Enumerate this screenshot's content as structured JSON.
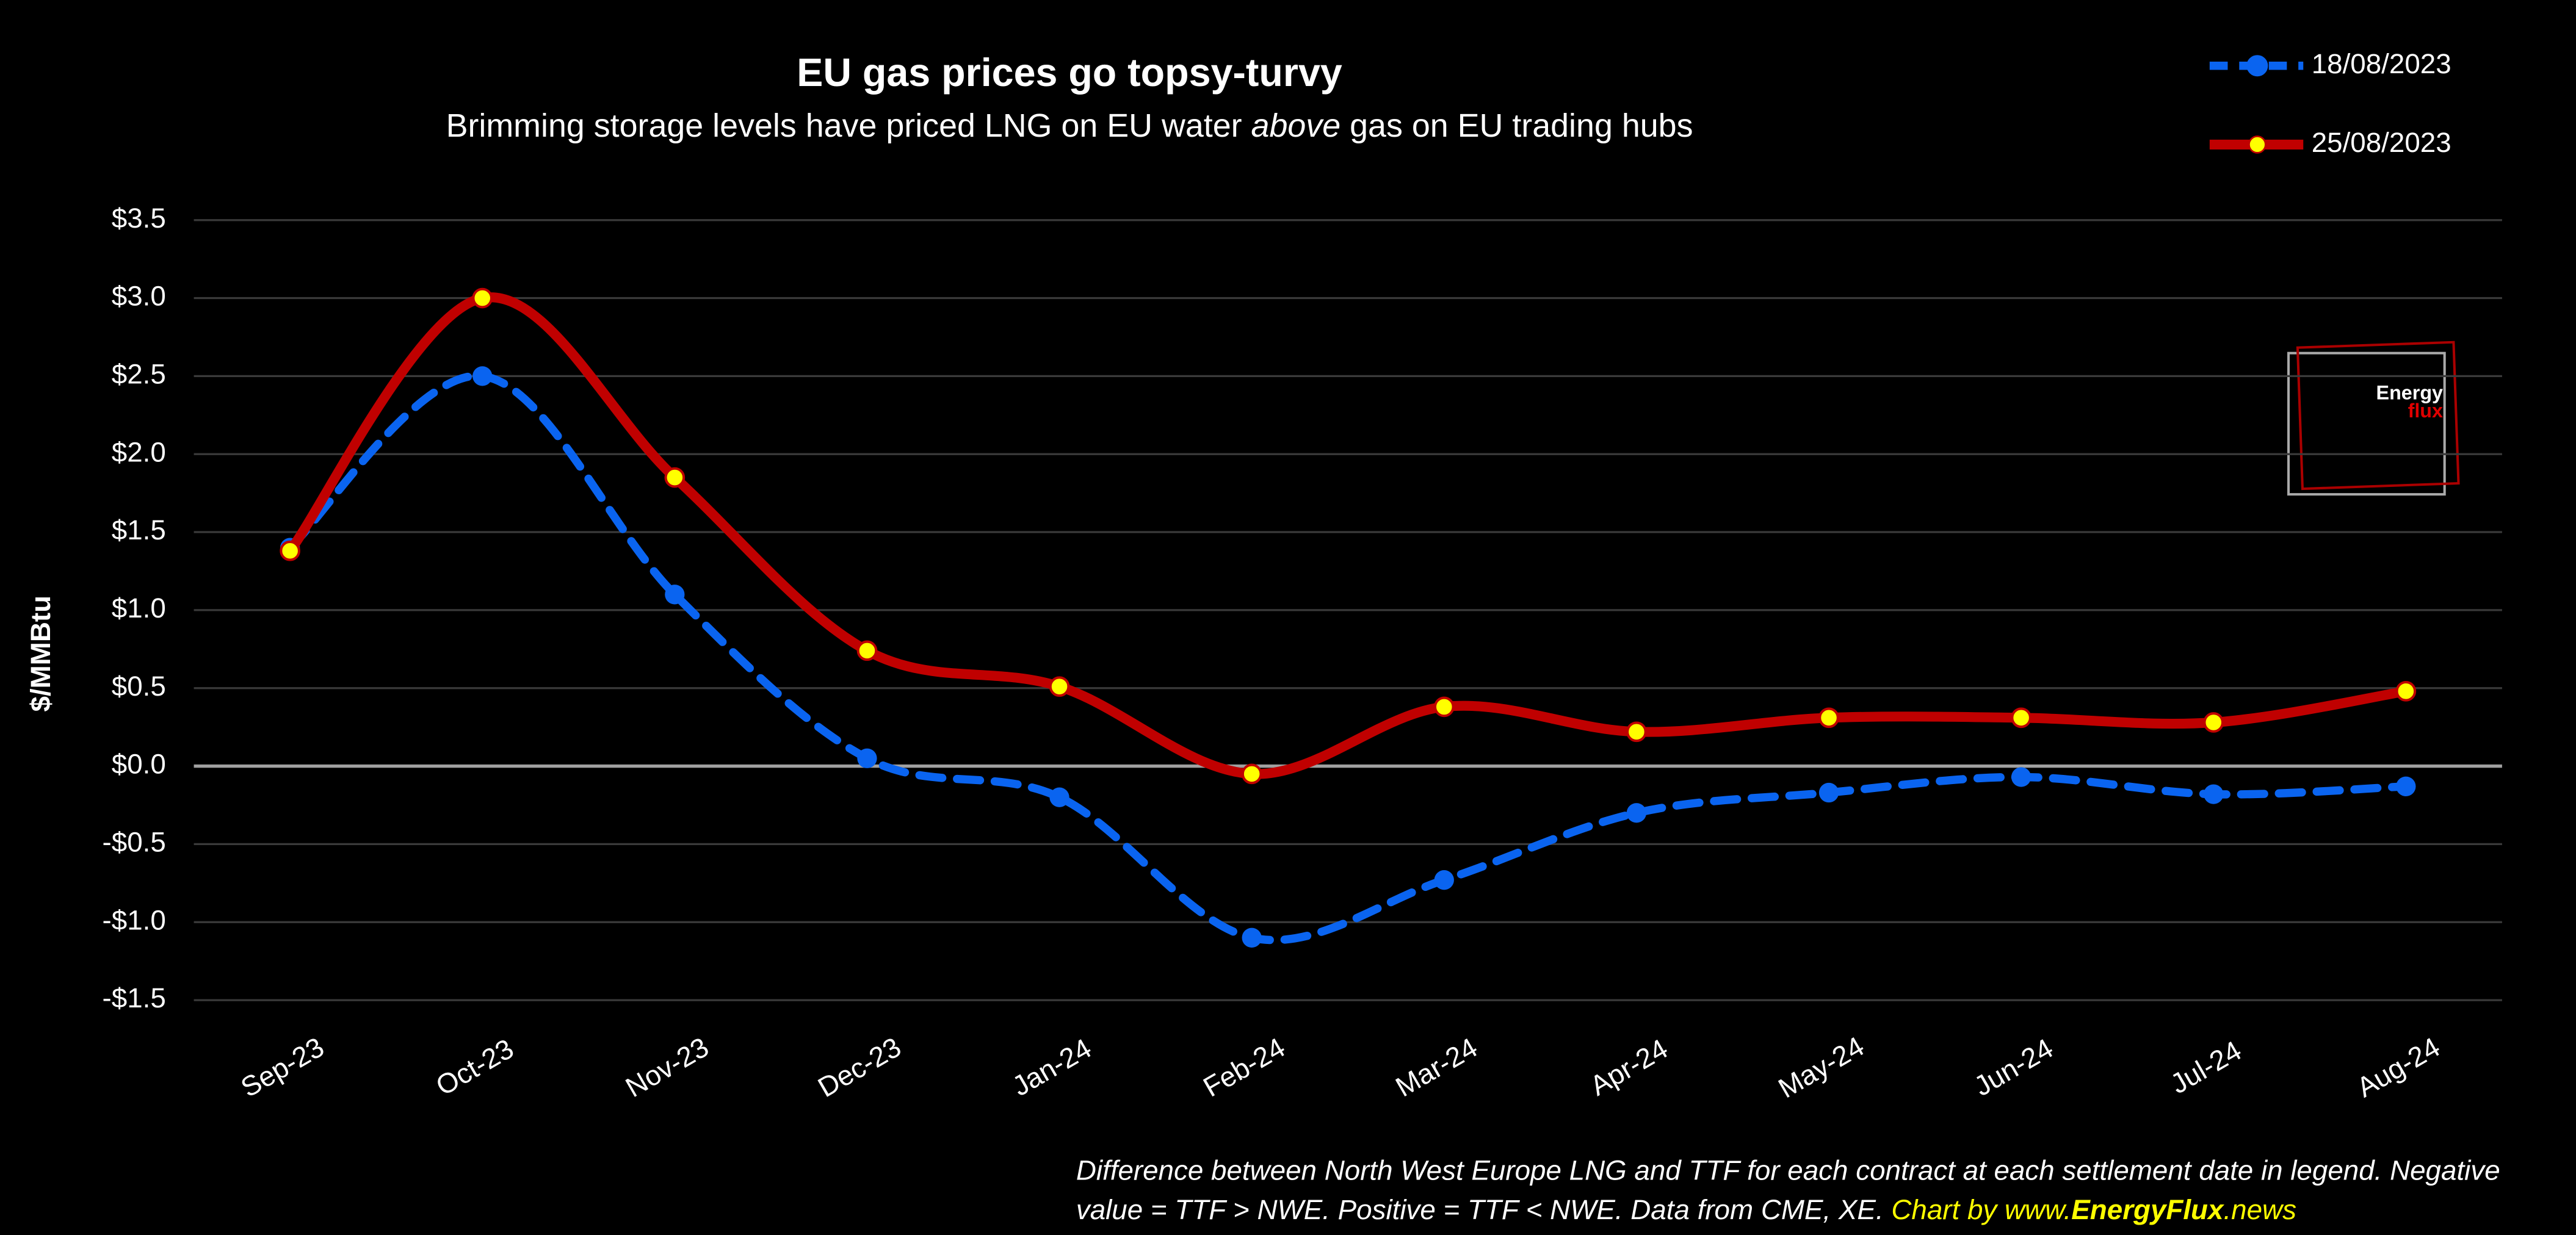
{
  "chart_data": {
    "type": "line",
    "title": "EU gas prices go topsy-turvy",
    "subtitle": [
      "Brimming storage levels have priced LNG on EU water ",
      "above",
      " gas on EU trading hubs"
    ],
    "y_label": "$/MMBtu",
    "categories": [
      "Sep-23",
      "Oct-23",
      "Nov-23",
      "Dec-23",
      "Jan-24",
      "Feb-24",
      "Mar-24",
      "Apr-24",
      "May-24",
      "Jun-24",
      "Jul-24",
      "Aug-24"
    ],
    "series": [
      {
        "name": "18/08/2023",
        "color": "#0a64f0",
        "dashed": true,
        "values": [
          1.4,
          2.5,
          1.1,
          0.05,
          -0.2,
          -1.1,
          -0.73,
          -0.3,
          -0.17,
          -0.07,
          -0.18,
          -0.13
        ]
      },
      {
        "name": "25/08/2023",
        "color": "#c00000",
        "marker_color": "#ffff00",
        "dashed": false,
        "values": [
          1.38,
          3.0,
          1.85,
          0.74,
          0.51,
          -0.05,
          0.38,
          0.22,
          0.31,
          0.31,
          0.28,
          0.48
        ]
      }
    ],
    "ylim": [
      -1.5,
      3.5
    ],
    "yticks": [
      {
        "value": 3.5,
        "label": "$3.5"
      },
      {
        "value": 3.0,
        "label": "$3.0"
      },
      {
        "value": 2.5,
        "label": "$2.5"
      },
      {
        "value": 2.0,
        "label": "$2.0"
      },
      {
        "value": 1.5,
        "label": "$1.5"
      },
      {
        "value": 1.0,
        "label": "$1.0"
      },
      {
        "value": 0.5,
        "label": "$0.5"
      },
      {
        "value": 0.0,
        "label": "$0.0"
      },
      {
        "value": -0.5,
        "label": "-$0.5"
      },
      {
        "value": -1.0,
        "label": "-$1.0"
      },
      {
        "value": -1.5,
        "label": "-$1.5"
      }
    ],
    "grid": true,
    "legend": "top-right",
    "logo": [
      "Energy",
      "flux"
    ],
    "note": [
      "Difference between North West Europe LNG and TTF for each contract at each settlement date in legend. Negative",
      "value = TTF > NWE. Positive = TTF < NWE. Data from CME, XE.  "
    ],
    "credit": [
      "Chart by www.",
      "EnergyFlux",
      ".news"
    ]
  }
}
